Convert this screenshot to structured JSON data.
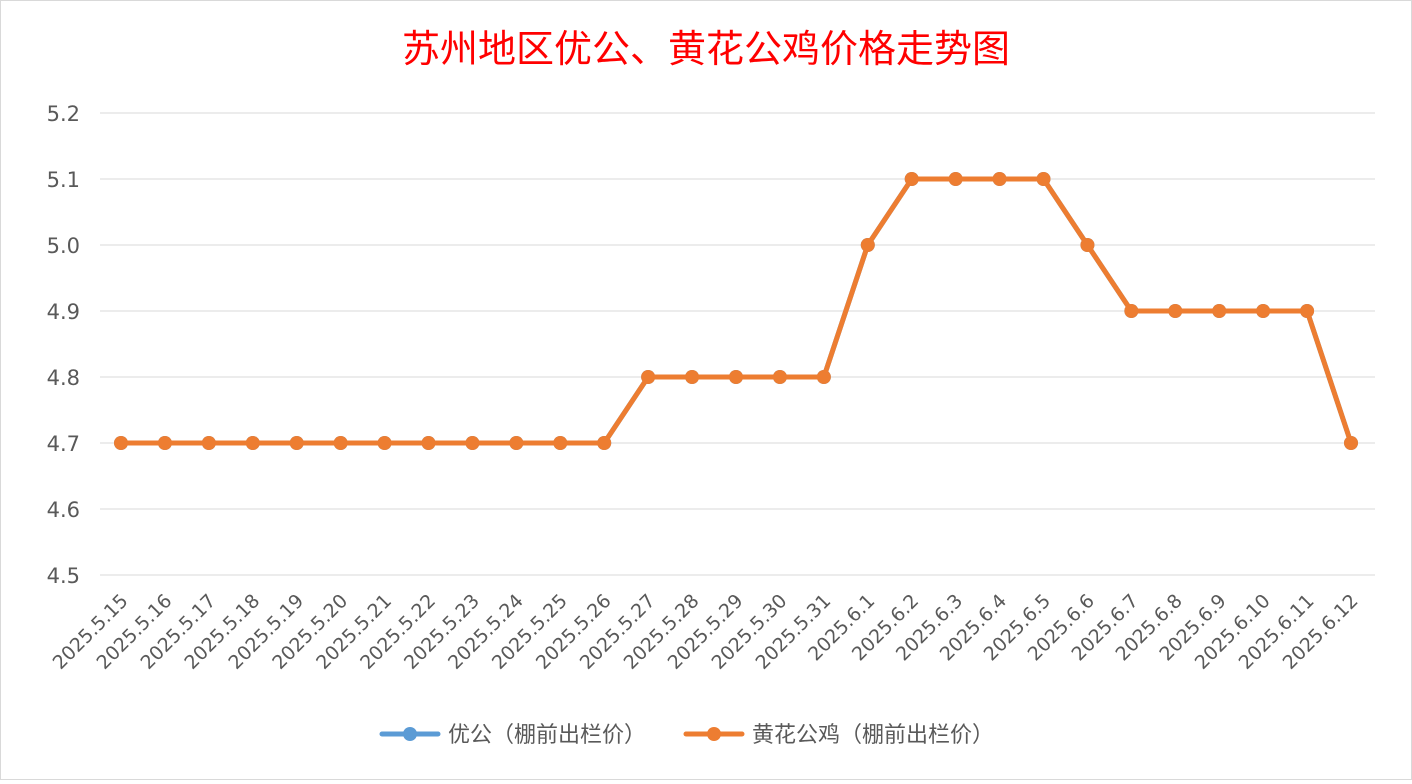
{
  "chart_data": {
    "type": "line",
    "title": "苏州地区优公、黄花公鸡价格走势图",
    "title_color": "#FF0000",
    "categories": [
      "2025.5.15",
      "2025.5.16",
      "2025.5.17",
      "2025.5.18",
      "2025.5.19",
      "2025.5.20",
      "2025.5.21",
      "2025.5.22",
      "2025.5.23",
      "2025.5.24",
      "2025.5.25",
      "2025.5.26",
      "2025.5.27",
      "2025.5.28",
      "2025.5.29",
      "2025.5.30",
      "2025.5.31",
      "2025.6.1",
      "2025.6.2",
      "2025.6.3",
      "2025.6.4",
      "2025.6.5",
      "2025.6.6",
      "2025.6.7",
      "2025.6.8",
      "2025.6.9",
      "2025.6.10",
      "2025.6.11",
      "2025.6.12"
    ],
    "yticks": [
      "5.2",
      "5.1",
      "5.0",
      "4.9",
      "4.8",
      "4.7",
      "4.6",
      "4.5"
    ],
    "ylim": [
      4.5,
      5.2
    ],
    "grid": true,
    "legend_position": "bottom",
    "series": [
      {
        "name": "优公（棚前出栏价）",
        "color": "#5B9BD5",
        "values": [
          4.7,
          4.7,
          4.7,
          4.7,
          4.7,
          4.7,
          4.7,
          4.7,
          4.7,
          4.7,
          4.7,
          4.7,
          4.8,
          4.8,
          4.8,
          4.8,
          4.8,
          5.0,
          5.1,
          5.1,
          5.1,
          5.1,
          5.0,
          4.9,
          4.9,
          4.9,
          4.9,
          4.9,
          4.7
        ]
      },
      {
        "name": "黄花公鸡（棚前出栏价）",
        "color": "#ED7D31",
        "values": [
          4.7,
          4.7,
          4.7,
          4.7,
          4.7,
          4.7,
          4.7,
          4.7,
          4.7,
          4.7,
          4.7,
          4.7,
          4.8,
          4.8,
          4.8,
          4.8,
          4.8,
          5.0,
          5.1,
          5.1,
          5.1,
          5.1,
          5.0,
          4.9,
          4.9,
          4.9,
          4.9,
          4.9,
          4.7
        ]
      }
    ]
  }
}
